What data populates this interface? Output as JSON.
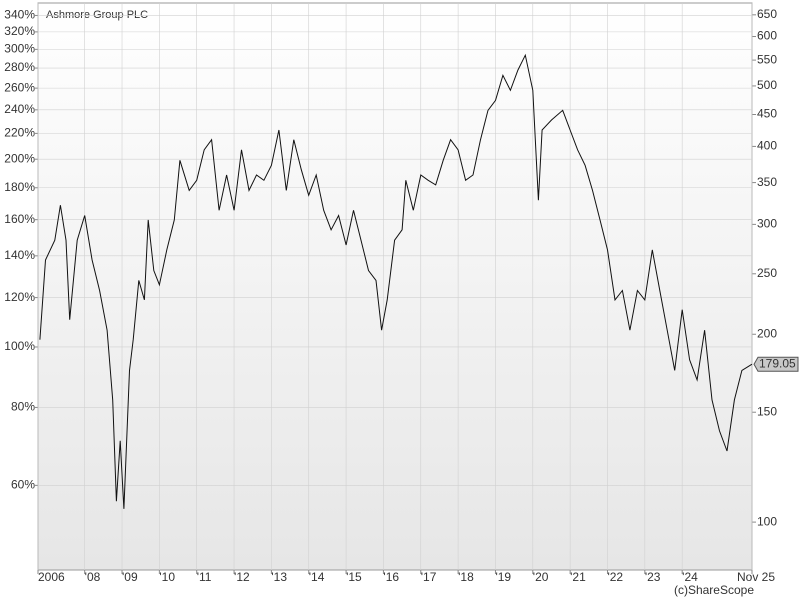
{
  "chart_data": {
    "type": "line",
    "title": "Ashmore Group PLC",
    "credit": "(c)ShareScope",
    "log_scale": true,
    "grid": true,
    "xlim": [
      2006.75,
      2025.87
    ],
    "xticks": [
      {
        "value": 2006.75,
        "label": "2006"
      },
      {
        "value": 2008,
        "label": "'08"
      },
      {
        "value": 2009,
        "label": "'09"
      },
      {
        "value": 2010,
        "label": "'10"
      },
      {
        "value": 2011,
        "label": "'11"
      },
      {
        "value": 2012,
        "label": "'12"
      },
      {
        "value": 2013,
        "label": "'13"
      },
      {
        "value": 2014,
        "label": "'14"
      },
      {
        "value": 2015,
        "label": "'15"
      },
      {
        "value": 2016,
        "label": "'16"
      },
      {
        "value": 2017,
        "label": "'17"
      },
      {
        "value": 2018,
        "label": "'18"
      },
      {
        "value": 2019,
        "label": "'19"
      },
      {
        "value": 2020,
        "label": "'20"
      },
      {
        "value": 2021,
        "label": "'21"
      },
      {
        "value": 2022,
        "label": "'22"
      },
      {
        "value": 2023,
        "label": "'23"
      },
      {
        "value": 2024,
        "label": "'24"
      },
      {
        "value": 2025.87,
        "label": "Nov 25"
      }
    ],
    "ylim": [
      43.9,
      356
    ],
    "yticks": [
      {
        "value": 340,
        "label": "340%"
      },
      {
        "value": 320,
        "label": "320%"
      },
      {
        "value": 300,
        "label": "300%"
      },
      {
        "value": 280,
        "label": "280%"
      },
      {
        "value": 260,
        "label": "260%"
      },
      {
        "value": 240,
        "label": "240%"
      },
      {
        "value": 220,
        "label": "220%"
      },
      {
        "value": 200,
        "label": "200%"
      },
      {
        "value": 180,
        "label": "180%"
      },
      {
        "value": 160,
        "label": "160%"
      },
      {
        "value": 140,
        "label": "140%"
      },
      {
        "value": 120,
        "label": "120%"
      },
      {
        "value": 100,
        "label": "100%"
      },
      {
        "value": 80,
        "label": "80%"
      },
      {
        "value": 60,
        "label": "60%"
      }
    ],
    "y2lim": [
      83.8,
      679
    ],
    "y2ticks": [
      650,
      600,
      550,
      500,
      450,
      400,
      350,
      300,
      250,
      200,
      150,
      100
    ],
    "series": [
      {
        "name": "Ashmore Group PLC",
        "color": "#111111",
        "axis": "y2",
        "x": [
          2006.8,
          2006.95,
          2007.2,
          2007.35,
          2007.5,
          2007.6,
          2007.8,
          2008.0,
          2008.2,
          2008.4,
          2008.6,
          2008.75,
          2008.85,
          2008.95,
          2009.05,
          2009.2,
          2009.3,
          2009.45,
          2009.6,
          2009.7,
          2009.85,
          2010.0,
          2010.2,
          2010.4,
          2010.55,
          2010.8,
          2011.0,
          2011.2,
          2011.4,
          2011.6,
          2011.8,
          2012.0,
          2012.2,
          2012.4,
          2012.6,
          2012.8,
          2013.0,
          2013.2,
          2013.4,
          2013.6,
          2013.8,
          2014.0,
          2014.2,
          2014.4,
          2014.6,
          2014.8,
          2015.0,
          2015.2,
          2015.4,
          2015.6,
          2015.8,
          2015.95,
          2016.1,
          2016.3,
          2016.5,
          2016.6,
          2016.8,
          2017.0,
          2017.2,
          2017.4,
          2017.6,
          2017.8,
          2018.0,
          2018.2,
          2018.4,
          2018.6,
          2018.8,
          2019.0,
          2019.2,
          2019.4,
          2019.6,
          2019.8,
          2020.0,
          2020.15,
          2020.25,
          2020.5,
          2020.8,
          2021.0,
          2021.2,
          2021.4,
          2021.6,
          2021.8,
          2022.0,
          2022.2,
          2022.4,
          2022.6,
          2022.8,
          2023.0,
          2023.2,
          2023.4,
          2023.6,
          2023.8,
          2024.0,
          2024.2,
          2024.4,
          2024.6,
          2024.8,
          2025.0,
          2025.2,
          2025.4,
          2025.6,
          2025.87
        ],
        "values": [
          196,
          263,
          283,
          322,
          283,
          211,
          283,
          310,
          263,
          235,
          203,
          157,
          108,
          135,
          105,
          175,
          196,
          244,
          227,
          305,
          253,
          240,
          273,
          305,
          380,
          340,
          353,
          395,
          410,
          316,
          360,
          316,
          395,
          340,
          360,
          353,
          373,
          425,
          340,
          410,
          367,
          334,
          360,
          316,
          294,
          310,
          278,
          316,
          283,
          253,
          244,
          203,
          227,
          283,
          294,
          353,
          316,
          360,
          353,
          347,
          380,
          410,
          395,
          353,
          360,
          410,
          457,
          474,
          520,
          492,
          530,
          560,
          492,
          328,
          425,
          441,
          457,
          425,
          395,
          373,
          340,
          305,
          273,
          227,
          235,
          203,
          235,
          227,
          273,
          235,
          203,
          175,
          219,
          182,
          169,
          203,
          157,
          140,
          130,
          157,
          175,
          179.05
        ]
      }
    ]
  }
}
